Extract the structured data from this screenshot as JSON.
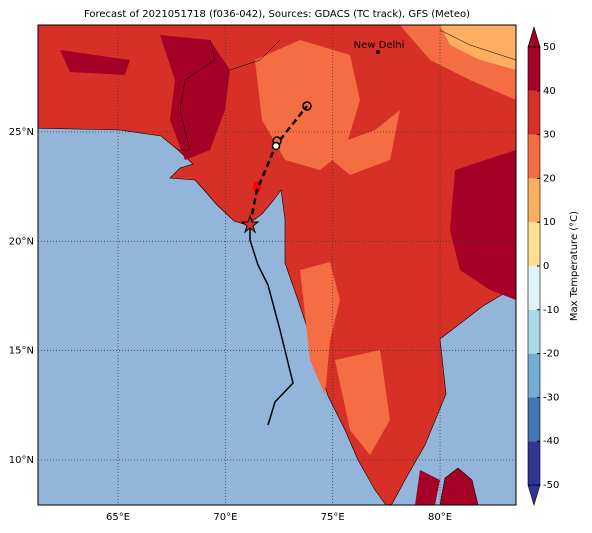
{
  "title": "Forecast of 2021051718 (f036-042), Sources: GDACS (TC track), GFS (Meteo)",
  "map": {
    "xlim": [
      61.27,
      83.54
    ],
    "ylim": [
      7.94,
      29.89
    ],
    "xticks": [
      {
        "value": 65,
        "label": "65°E"
      },
      {
        "value": 70,
        "label": "70°E"
      },
      {
        "value": 75,
        "label": "75°E"
      },
      {
        "value": 80,
        "label": "80°E"
      }
    ],
    "yticks": [
      {
        "value": 10,
        "label": "10°N"
      },
      {
        "value": 15,
        "label": "15°N"
      },
      {
        "value": 20,
        "label": "20°N"
      },
      {
        "value": 25,
        "label": "25°N"
      }
    ],
    "city": "New Delhi"
  },
  "colorbar": {
    "label": "Max Temperature (°C)",
    "ticks": [
      -50,
      -40,
      -30,
      -20,
      -10,
      0,
      10,
      20,
      30,
      40,
      50
    ],
    "colors": [
      "#313695",
      "#4575b4",
      "#74add1",
      "#abd9e9",
      "#e0f3f8",
      "#fee090",
      "#fdae61",
      "#f46d43",
      "#d73027",
      "#a50026"
    ]
  }
}
